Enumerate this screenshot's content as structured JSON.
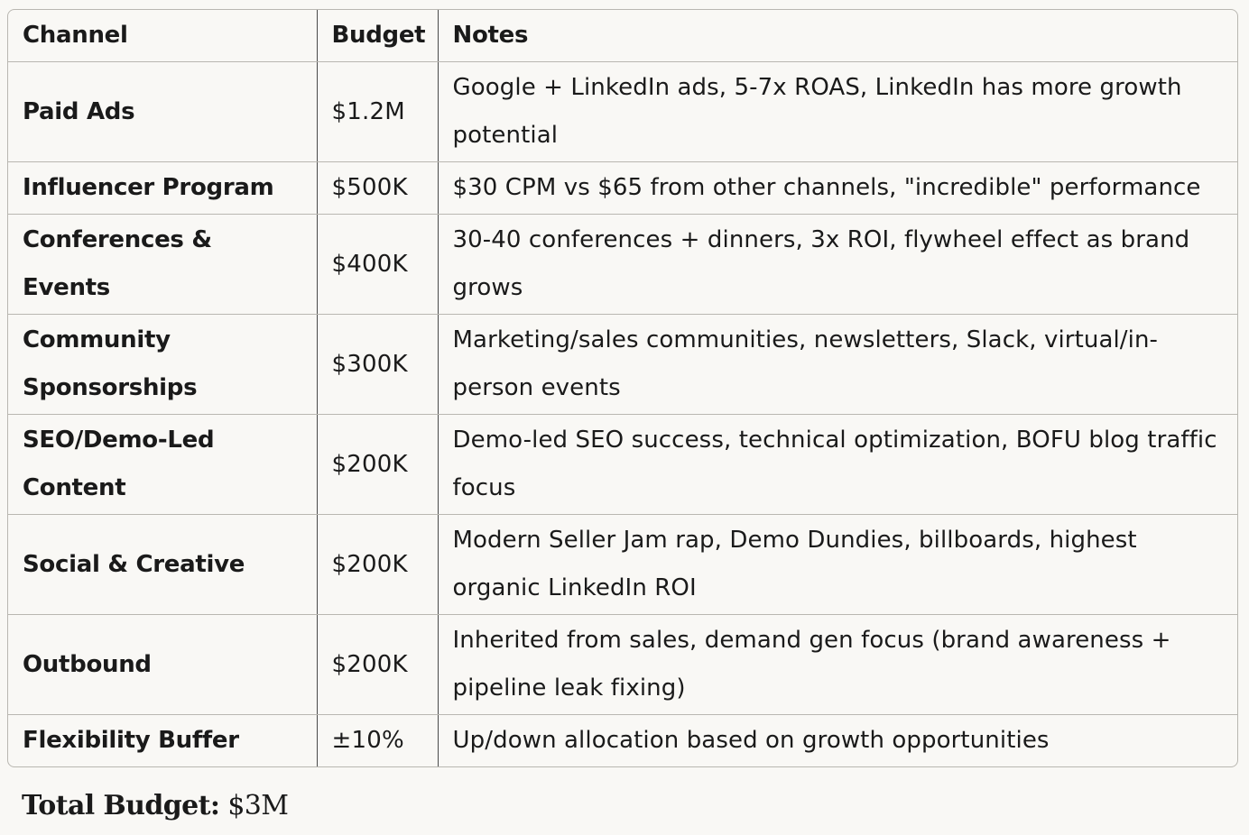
{
  "table": {
    "headers": [
      "Channel",
      "Budget",
      "Notes"
    ],
    "rows": [
      {
        "channel": "Paid Ads",
        "budget": "$1.2M",
        "notes": "Google + LinkedIn ads, 5-7x ROAS, LinkedIn has more growth potential"
      },
      {
        "channel": "Influencer Program",
        "budget": "$500K",
        "notes": "$30 CPM vs $65 from other channels, \"incredible\" performance"
      },
      {
        "channel": "Conferences & Events",
        "budget": "$400K",
        "notes": "30-40 conferences + dinners, 3x ROI, flywheel effect as brand grows"
      },
      {
        "channel": "Community Sponsorships",
        "budget": "$300K",
        "notes": "Marketing/sales communities, newsletters, Slack, virtual/in-person events"
      },
      {
        "channel": "SEO/Demo-Led Content",
        "budget": "$200K",
        "notes": "Demo-led SEO success, technical optimization, BOFU blog traffic focus"
      },
      {
        "channel": "Social & Creative",
        "budget": "$200K",
        "notes": "Modern Seller Jam rap, Demo Dundies, billboards, highest organic LinkedIn ROI"
      },
      {
        "channel": "Outbound",
        "budget": "$200K",
        "notes": "Inherited from sales, demand gen focus (brand awareness + pipeline leak fixing)"
      },
      {
        "channel": "Flexibility Buffer",
        "budget": "±10%",
        "notes": "Up/down allocation based on growth opportunities"
      }
    ]
  },
  "total": {
    "label": "Total Budget:",
    "value": "$3M"
  }
}
